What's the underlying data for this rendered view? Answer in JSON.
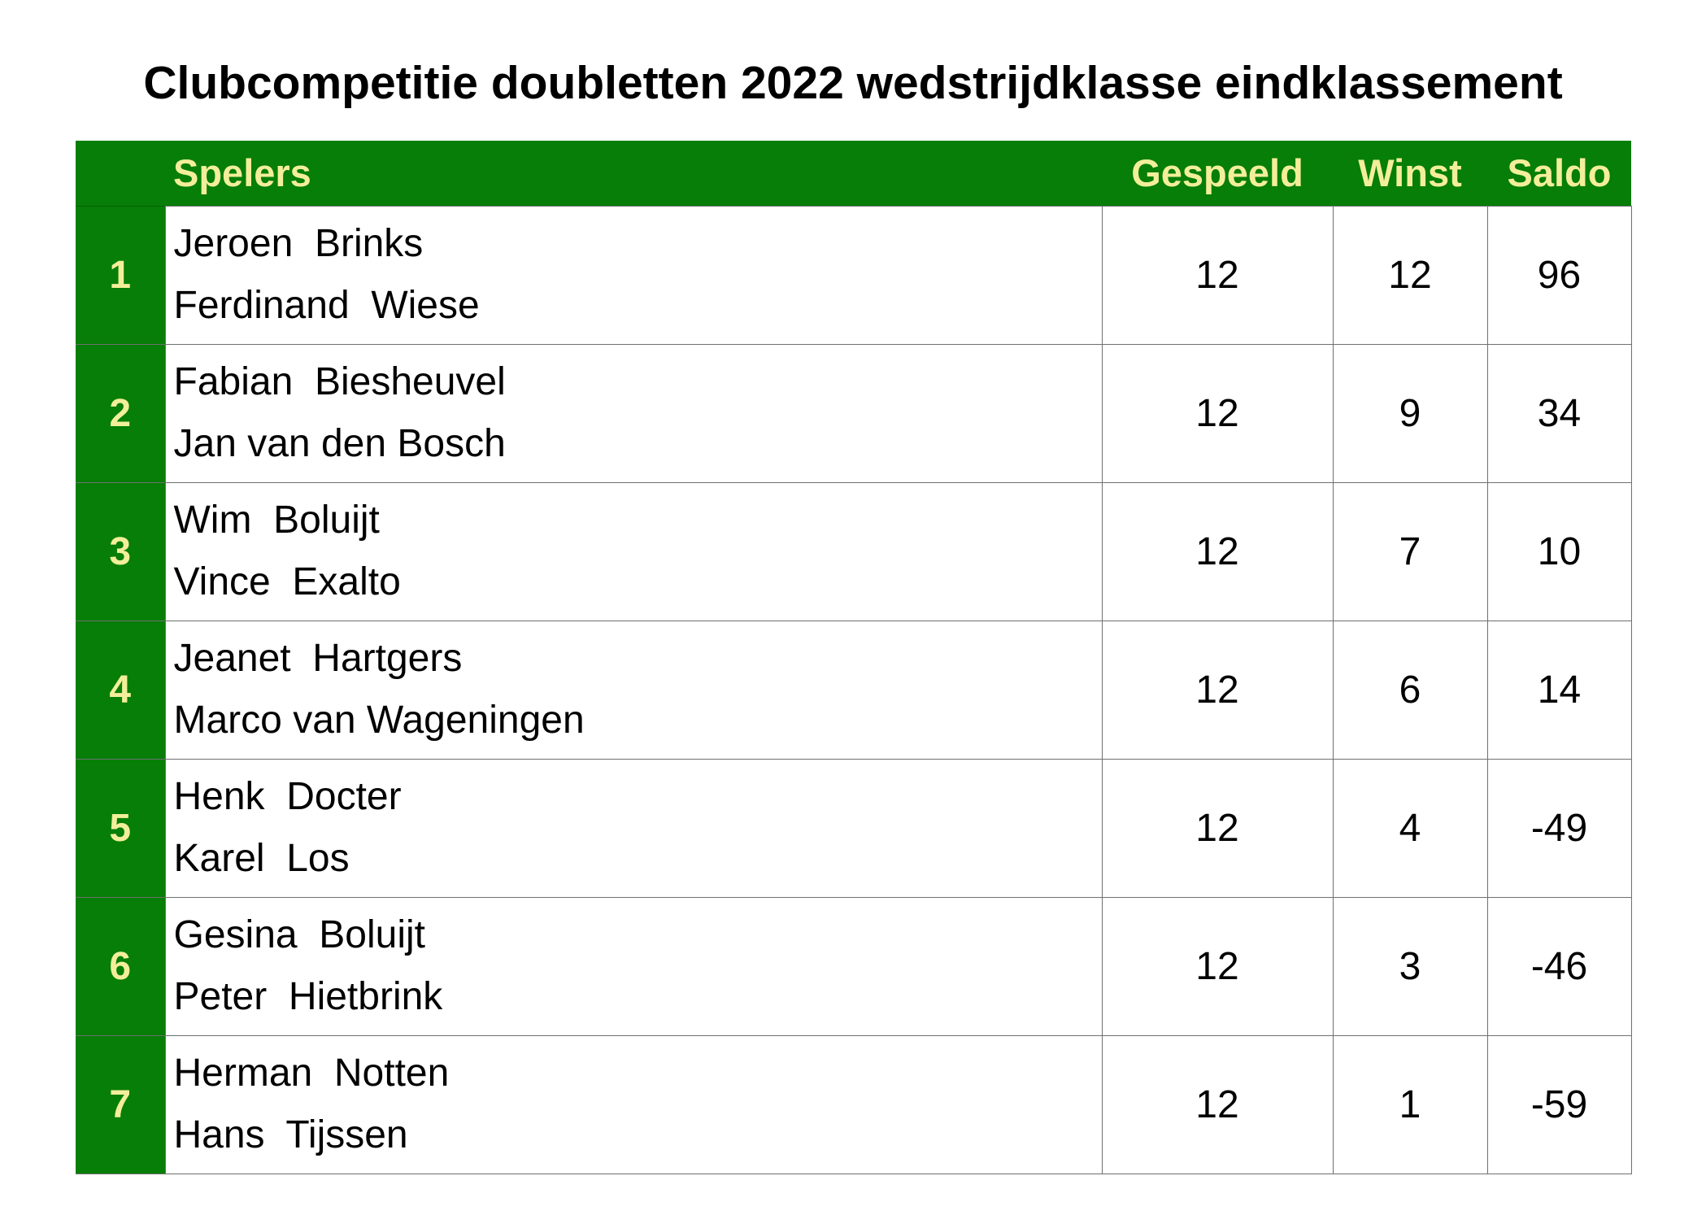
{
  "title": "Clubcompetitie doubletten 2022 wedstrijdklasse eindklassement",
  "colors": {
    "header_background": "#067e07",
    "header_text": "#f3ee9a",
    "grid_line": "#6f6f6f"
  },
  "table": {
    "headers": {
      "rank": "",
      "players": "Spelers",
      "played": "Gespeeld",
      "wins": "Winst",
      "saldo": "Saldo"
    },
    "rows": [
      {
        "rank": "1",
        "player1": "Jeroen  Brinks",
        "player2": "Ferdinand  Wiese",
        "played": "12",
        "wins": "12",
        "saldo": "96"
      },
      {
        "rank": "2",
        "player1": "Fabian  Biesheuvel",
        "player2": "Jan van den Bosch",
        "played": "12",
        "wins": "9",
        "saldo": "34"
      },
      {
        "rank": "3",
        "player1": "Wim  Boluijt",
        "player2": "Vince  Exalto",
        "played": "12",
        "wins": "7",
        "saldo": "10"
      },
      {
        "rank": "4",
        "player1": "Jeanet  Hartgers",
        "player2": "Marco van Wageningen",
        "played": "12",
        "wins": "6",
        "saldo": "14"
      },
      {
        "rank": "5",
        "player1": "Henk  Docter",
        "player2": "Karel  Los",
        "played": "12",
        "wins": "4",
        "saldo": "-49"
      },
      {
        "rank": "6",
        "player1": "Gesina  Boluijt",
        "player2": "Peter  Hietbrink",
        "played": "12",
        "wins": "3",
        "saldo": "-46"
      },
      {
        "rank": "7",
        "player1": "Herman  Notten",
        "player2": "Hans  Tijssen",
        "played": "12",
        "wins": "1",
        "saldo": "-59"
      }
    ]
  }
}
